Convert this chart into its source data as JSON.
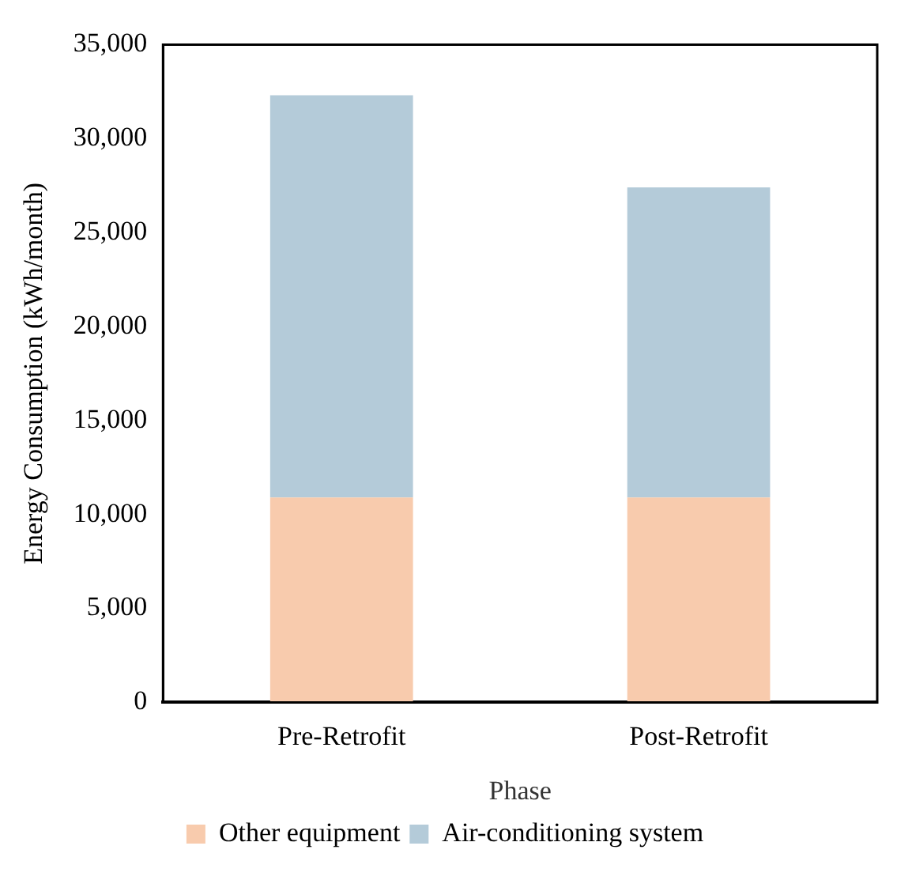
{
  "chart_data": {
    "type": "bar",
    "stacked": true,
    "xlabel": "Phase",
    "ylabel": "Energy Consumption (kWh/month)",
    "categories": [
      "Pre-Retrofit",
      "Post-Retrofit"
    ],
    "series": [
      {
        "name": "Other equipment",
        "color": "#f8cbad",
        "values": [
          10900,
          10900
        ]
      },
      {
        "name": "Air-conditioning system",
        "color": "#b4cbd9",
        "values": [
          21400,
          16500
        ]
      }
    ],
    "ylim": [
      0,
      35000
    ],
    "yticks": [
      0,
      {
        "value": 5000,
        "label": "5,000"
      },
      {
        "value": 10000,
        "label": "10,000"
      },
      {
        "value": 15000,
        "label": "15,000"
      },
      {
        "value": 20000,
        "label": "20,000"
      },
      {
        "value": 25000,
        "label": "25,000"
      },
      {
        "value": 30000,
        "label": "30,000"
      },
      {
        "value": 35000,
        "label": "35,000"
      }
    ],
    "grid": false,
    "legend": "bottom"
  }
}
